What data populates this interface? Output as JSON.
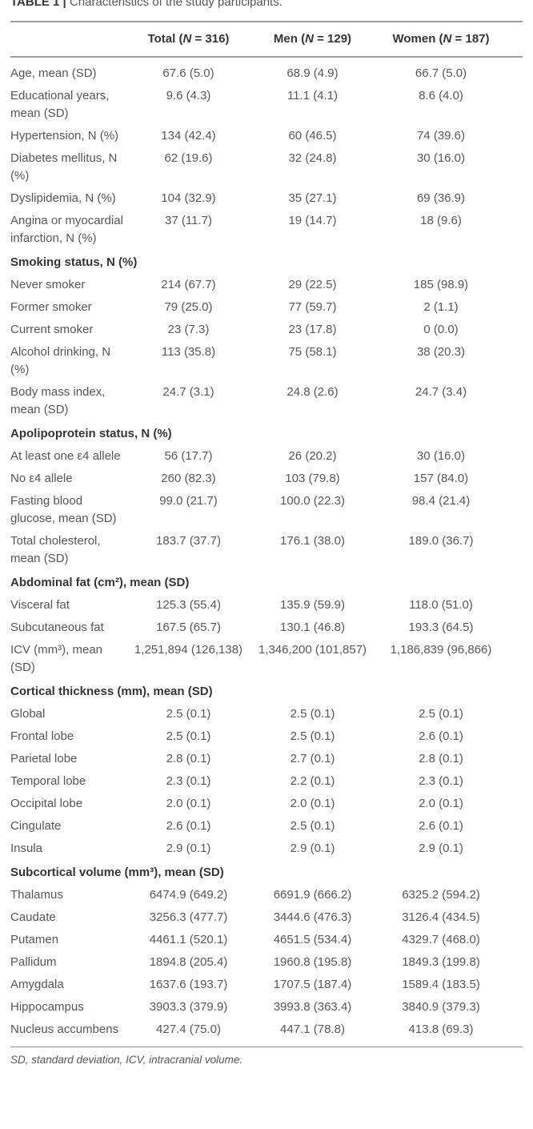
{
  "page": {
    "title_label": "TABLE 1 |",
    "title_caption": "Characteristics of the study participants.",
    "footnote": "SD, standard deviation, ICV, intracranial volume."
  },
  "colors": {
    "body_text": "#55575b",
    "heading_text": "#33353a",
    "rule": "#a0a0a0"
  },
  "table": {
    "columns": [
      {
        "group": "Total",
        "n_symbol": "N",
        "n_value": "316"
      },
      {
        "group": "Men",
        "n_symbol": "N",
        "n_value": "129"
      },
      {
        "group": "Women",
        "n_symbol": "N",
        "n_value": "187"
      }
    ],
    "rows": [
      {
        "type": "data",
        "label": "Age, mean (SD)",
        "values": [
          "67.6 (5.0)",
          "68.9 (4.9)",
          "66.7 (5.0)"
        ]
      },
      {
        "type": "data",
        "label": "Educational years, mean (SD)",
        "values": [
          "9.6 (4.3)",
          "11.1 (4.1)",
          "8.6 (4.0)"
        ]
      },
      {
        "type": "data",
        "label": "Hypertension, N (%)",
        "values": [
          "134 (42.4)",
          "60 (46.5)",
          "74 (39.6)"
        ]
      },
      {
        "type": "data",
        "label": "Diabetes mellitus, N (%)",
        "values": [
          "62 (19.6)",
          "32 (24.8)",
          "30 (16.0)"
        ]
      },
      {
        "type": "data",
        "label": "Dyslipidemia, N (%)",
        "values": [
          "104 (32.9)",
          "35 (27.1)",
          "69 (36.9)"
        ]
      },
      {
        "type": "data",
        "label": "Angina or myocardial infarction, N (%)",
        "values": [
          "37 (11.7)",
          "19 (14.7)",
          "18 (9.6)"
        ]
      },
      {
        "type": "section",
        "label": "Smoking status, N (%)"
      },
      {
        "type": "data",
        "label": "Never smoker",
        "values": [
          "214 (67.7)",
          "29 (22.5)",
          "185 (98.9)"
        ]
      },
      {
        "type": "data",
        "label": "Former smoker",
        "values": [
          "79 (25.0)",
          "77 (59.7)",
          "2 (1.1)"
        ]
      },
      {
        "type": "data",
        "label": "Current smoker",
        "values": [
          "23 (7.3)",
          "23 (17.8)",
          "0 (0.0)"
        ]
      },
      {
        "type": "data",
        "label": "Alcohol drinking, N (%)",
        "values": [
          "113 (35.8)",
          "75 (58.1)",
          "38 (20.3)"
        ]
      },
      {
        "type": "data",
        "label": "Body mass index, mean (SD)",
        "values": [
          "24.7 (3.1)",
          "24.8 (2.6)",
          "24.7 (3.4)"
        ]
      },
      {
        "type": "section",
        "label": "Apolipoprotein status, N (%)"
      },
      {
        "type": "data",
        "label": "At least one ε4 allele",
        "values": [
          "56 (17.7)",
          "26 (20.2)",
          "30 (16.0)"
        ]
      },
      {
        "type": "data",
        "label": "No ε4 allele",
        "values": [
          "260 (82.3)",
          "103 (79.8)",
          "157 (84.0)"
        ]
      },
      {
        "type": "data",
        "label": "Fasting blood glucose, mean (SD)",
        "values": [
          "99.0 (21.7)",
          "100.0 (22.3)",
          "98.4 (21.4)"
        ]
      },
      {
        "type": "data",
        "label": "Total cholesterol, mean (SD)",
        "values": [
          "183.7 (37.7)",
          "176.1 (38.0)",
          "189.0 (36.7)"
        ]
      },
      {
        "type": "section",
        "label": "Abdominal fat (cm²), mean (SD)"
      },
      {
        "type": "data",
        "label": "Visceral fat",
        "values": [
          "125.3 (55.4)",
          "135.9 (59.9)",
          "118.0 (51.0)"
        ]
      },
      {
        "type": "data",
        "label": "Subcutaneous fat",
        "values": [
          "167.5 (65.7)",
          "130.1 (46.8)",
          "193.3 (64.5)"
        ]
      },
      {
        "type": "data",
        "label": "ICV (mm³), mean (SD)",
        "values": [
          "1,251,894 (126,138)",
          "1,346,200 (101,857)",
          "1,186,839 (96,866)"
        ]
      },
      {
        "type": "section",
        "label": "Cortical thickness (mm), mean (SD)"
      },
      {
        "type": "data",
        "label": "Global",
        "values": [
          "2.5 (0.1)",
          "2.5 (0.1)",
          "2.5 (0.1)"
        ]
      },
      {
        "type": "data",
        "label": "Frontal lobe",
        "values": [
          "2.5 (0.1)",
          "2.5 (0.1)",
          "2.6 (0.1)"
        ]
      },
      {
        "type": "data",
        "label": "Parietal lobe",
        "values": [
          "2.8 (0.1)",
          "2.7 (0.1)",
          "2.8 (0.1)"
        ]
      },
      {
        "type": "data",
        "label": "Temporal lobe",
        "values": [
          "2.3 (0.1)",
          "2.2 (0.1)",
          "2.3 (0.1)"
        ]
      },
      {
        "type": "data",
        "label": "Occipital lobe",
        "values": [
          "2.0 (0.1)",
          "2.0 (0.1)",
          "2.0 (0.1)"
        ]
      },
      {
        "type": "data",
        "label": "Cingulate",
        "values": [
          "2.6 (0.1)",
          "2.5 (0.1)",
          "2.6 (0.1)"
        ]
      },
      {
        "type": "data",
        "label": "Insula",
        "values": [
          "2.9 (0.1)",
          "2.9 (0.1)",
          "2.9 (0.1)"
        ]
      },
      {
        "type": "section",
        "label": "Subcortical volume (mm³), mean (SD)"
      },
      {
        "type": "data",
        "label": "Thalamus",
        "values": [
          "6474.9 (649.2)",
          "6691.9 (666.2)",
          "6325.2 (594.2)"
        ]
      },
      {
        "type": "data",
        "label": "Caudate",
        "values": [
          "3256.3 (477.7)",
          "3444.6 (476.3)",
          "3126.4 (434.5)"
        ]
      },
      {
        "type": "data",
        "label": "Putamen",
        "values": [
          "4461.1 (520.1)",
          "4651.5 (534.4)",
          "4329.7 (468.0)"
        ]
      },
      {
        "type": "data",
        "label": "Pallidum",
        "values": [
          "1894.8 (205.4)",
          "1960.8 (195.8)",
          "1849.3 (199.8)"
        ]
      },
      {
        "type": "data",
        "label": "Amygdala",
        "values": [
          "1637.6 (193.7)",
          "1707.5 (187.4)",
          "1589.4 (183.5)"
        ]
      },
      {
        "type": "data",
        "label": "Hippocampus",
        "values": [
          "3903.3 (379.9)",
          "3993.8 (363.4)",
          "3840.9 (379.3)"
        ]
      },
      {
        "type": "data",
        "label": "Nucleus accumbens",
        "values": [
          "427.4 (75.0)",
          "447.1 (78.8)",
          "413.8 (69.3)"
        ]
      }
    ]
  }
}
